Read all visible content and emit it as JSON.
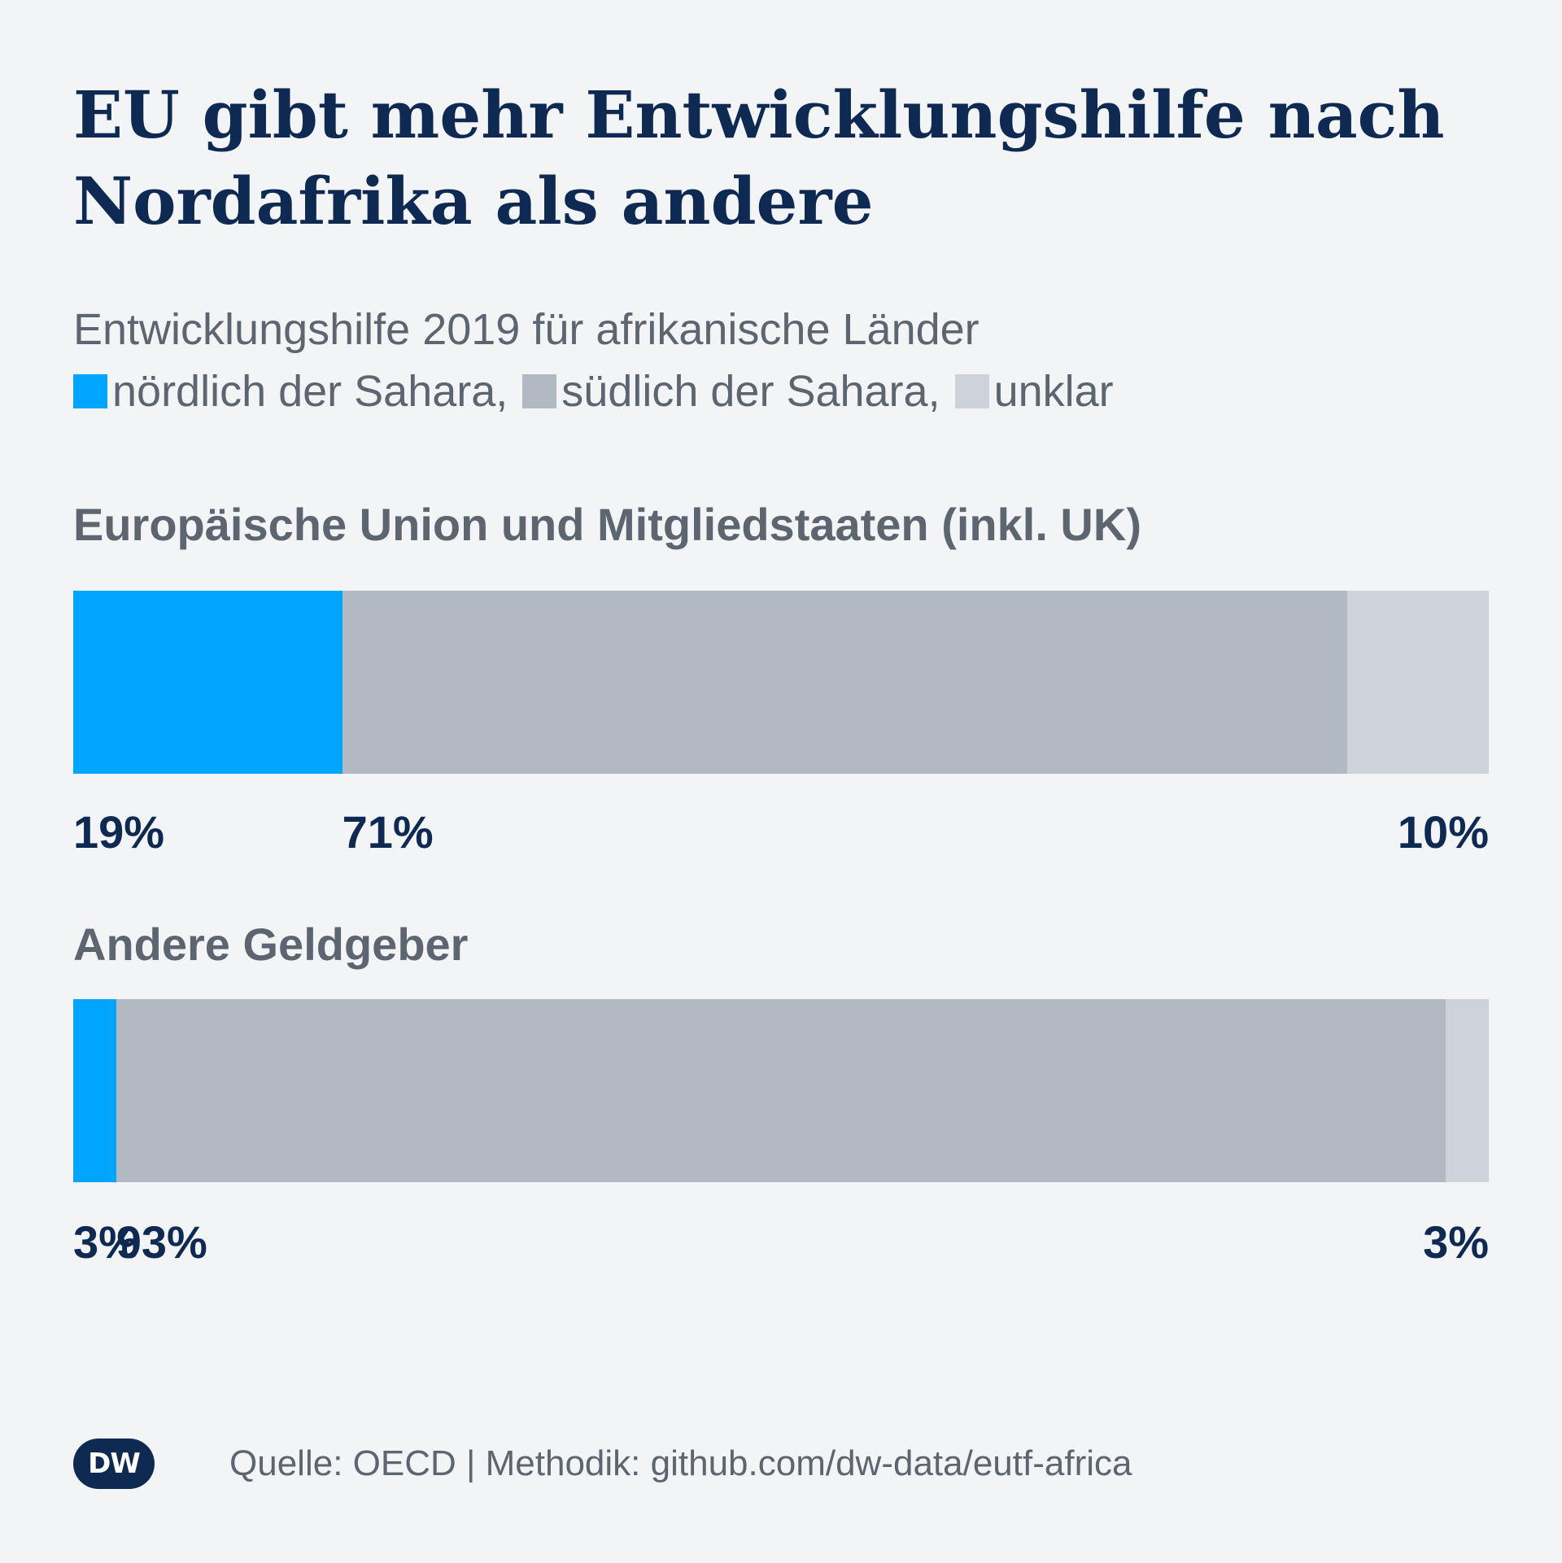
{
  "title": "EU gibt mehr Entwicklungshilfe nach Nordafrika als andere",
  "subtitle": "Entwicklungshilfe 2019 für afrikanische Länder",
  "legend": [
    {
      "label": "nördlich der Sahara,",
      "color": "#00a5ff"
    },
    {
      "label": "südlich der Sahara,",
      "color": "#b1bac3"
    },
    {
      "label": "unklar",
      "color": "#cdd3d9"
    }
  ],
  "chart_data": {
    "type": "bar",
    "orientation": "horizontal-stacked",
    "unit": "%",
    "series_colors": [
      "#00a5ff",
      "#b1bac3",
      "#cdd3d9"
    ],
    "groups": [
      {
        "label": "Europäische Union und Mitgliedstaaten (inkl. UK)",
        "values": [
          19,
          71,
          10
        ],
        "labels": [
          "19%",
          "71%",
          "10%"
        ]
      },
      {
        "label": "Andere Geldgeber",
        "values": [
          3,
          93,
          3
        ],
        "labels": [
          "3%",
          "93%",
          "3%"
        ]
      }
    ]
  },
  "footer": {
    "logo_text": "DW",
    "source": "Quelle: OECD | Methodik: github.com/dw-data/eutf-africa"
  }
}
